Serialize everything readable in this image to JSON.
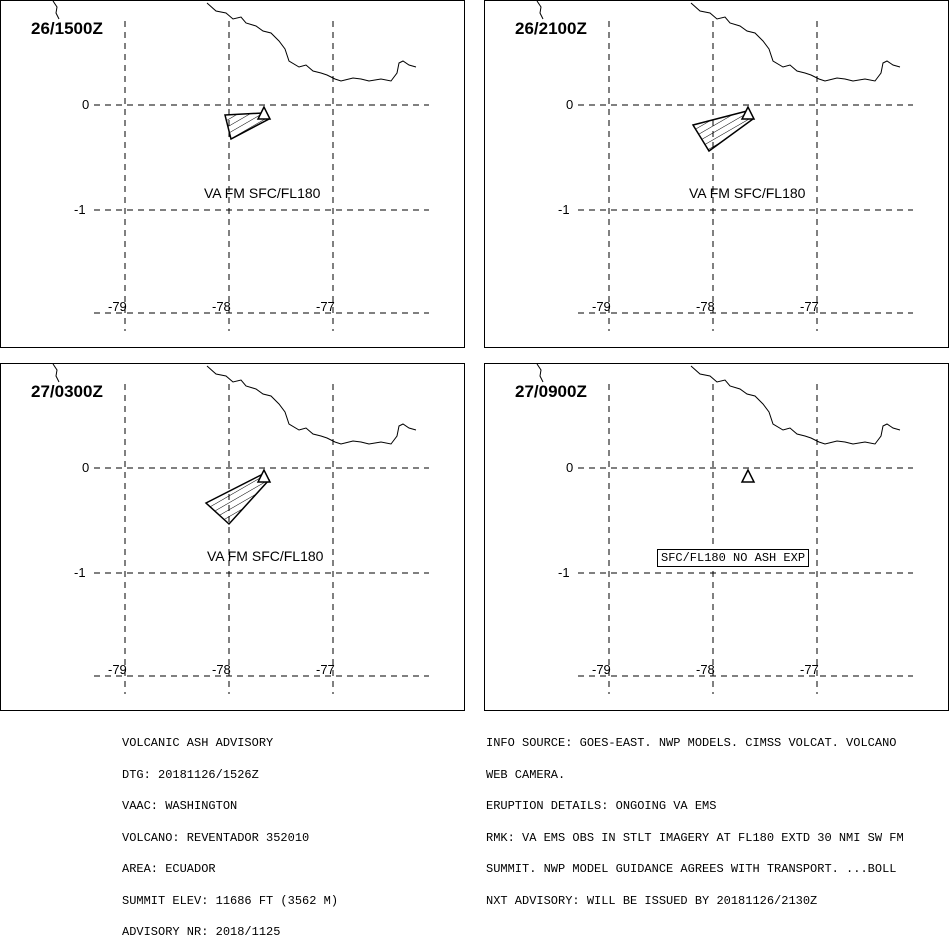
{
  "panels": [
    {
      "time": "26/1500Z",
      "label": "VA FM SFC/FL180",
      "boxed": false
    },
    {
      "time": "26/2100Z",
      "label": "VA FM SFC/FL180",
      "boxed": false
    },
    {
      "time": "27/0300Z",
      "label": "VA FM SFC/FL180",
      "boxed": false
    },
    {
      "time": "27/0900Z",
      "label": "SFC/FL180 NO ASH EXP",
      "boxed": true
    }
  ],
  "grid": {
    "lat_labels": [
      "0",
      "-1"
    ],
    "lon_labels": [
      "-79",
      "-78",
      "-77"
    ]
  },
  "advisory": {
    "left_lines": [
      "VOLCANIC ASH ADVISORY",
      "DTG: 20181126/1526Z",
      "VAAC: WASHINGTON",
      "VOLCANO: REVENTADOR 352010",
      "AREA: ECUADOR",
      "SUMMIT ELEV: 11686 FT (3562 M)",
      "ADVISORY NR: 2018/1125"
    ],
    "right_lines": [
      "INFO SOURCE: GOES-EAST. NWP MODELS. CIMSS VOLCAT. VOLCANO",
      "WEB CAMERA.",
      "ERUPTION DETAILS: ONGOING VA EMS",
      "RMK: VA EMS OBS IN STLT IMAGERY AT FL180 EXTD 30 NMI SW FM",
      "SUMMIT. NWP MODEL GUIDANCE AGREES WITH TRANSPORT. ...BOLL",
      "NXT ADVISORY: WILL BE ISSUED BY 20181126/2130Z"
    ]
  }
}
